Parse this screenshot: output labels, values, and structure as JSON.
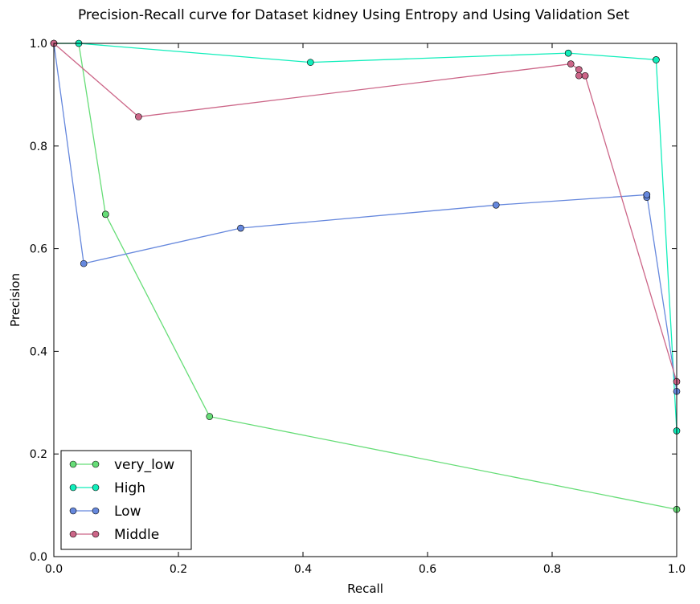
{
  "chart_data": {
    "type": "line",
    "title": "Precision-Recall curve for Dataset kidney Using Entropy and Using Validation Set",
    "xlabel": "Recall",
    "ylabel": "Precision",
    "xlim": [
      0.0,
      1.0
    ],
    "ylim": [
      0.0,
      1.0
    ],
    "xticks": [
      "0.0",
      "0.2",
      "0.4",
      "0.6",
      "0.8",
      "1.0"
    ],
    "yticks": [
      "0.0",
      "0.2",
      "0.4",
      "0.6",
      "0.8",
      "1.0"
    ],
    "grid": false,
    "legend_position": "lower-left",
    "series": [
      {
        "name": "very_low",
        "color": "#66dd77",
        "points": [
          [
            0.0,
            1.0
          ],
          [
            0.04,
            1.0
          ],
          [
            0.083,
            0.667
          ],
          [
            0.083,
            0.667
          ],
          [
            0.25,
            0.273
          ],
          [
            1.0,
            0.092
          ]
        ]
      },
      {
        "name": "High",
        "color": "#11eebb",
        "points": [
          [
            0.0,
            1.0
          ],
          [
            0.04,
            1.0
          ],
          [
            0.412,
            0.963
          ],
          [
            0.826,
            0.981
          ],
          [
            0.826,
            0.981
          ],
          [
            0.967,
            0.968
          ],
          [
            0.967,
            0.968
          ],
          [
            1.0,
            0.245
          ]
        ]
      },
      {
        "name": "Low",
        "color": "#6688dd",
        "points": [
          [
            0.0,
            1.0
          ],
          [
            0.048,
            0.571
          ],
          [
            0.3,
            0.64
          ],
          [
            0.71,
            0.685
          ],
          [
            0.952,
            0.705
          ],
          [
            0.952,
            0.7
          ],
          [
            0.952,
            0.705
          ],
          [
            1.0,
            0.322
          ]
        ]
      },
      {
        "name": "Middle",
        "color": "#cc6688",
        "points": [
          [
            0.0,
            1.0
          ],
          [
            0.136,
            0.857
          ],
          [
            0.83,
            0.96
          ],
          [
            0.843,
            0.949
          ],
          [
            0.843,
            0.937
          ],
          [
            0.853,
            0.937
          ],
          [
            0.853,
            0.937
          ],
          [
            1.0,
            0.341
          ]
        ]
      }
    ]
  }
}
